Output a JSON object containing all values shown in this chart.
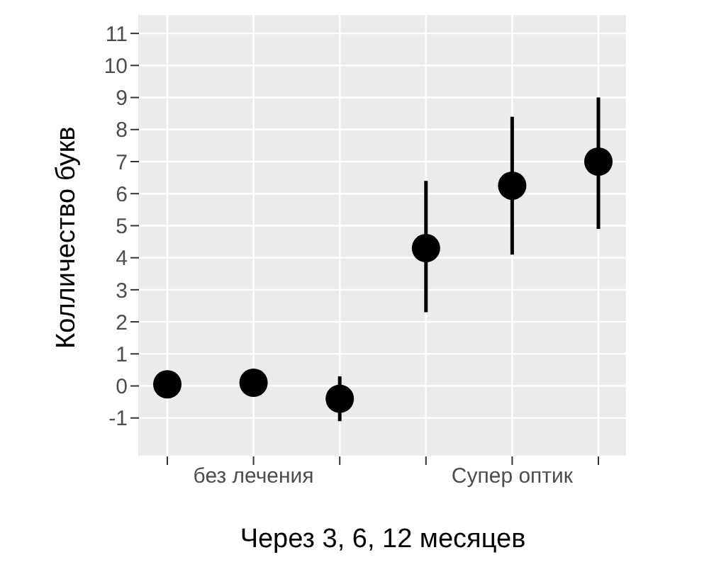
{
  "chart_data": {
    "type": "scatter",
    "xlabel": "Через 3, 6, 12 месяцев",
    "ylabel": "Колличество букв",
    "categories": [
      null,
      "без лечения",
      null,
      null,
      "Супер оптик",
      null
    ],
    "series": [
      {
        "color": "#000000",
        "values": [
          0.05,
          0.1,
          -0.4,
          4.3,
          6.25,
          7.0
        ],
        "errors": [
          null,
          null,
          [
            -1.1,
            0.3
          ],
          [
            2.3,
            6.4
          ],
          [
            4.1,
            8.4
          ],
          [
            4.9,
            9.0
          ]
        ]
      }
    ],
    "ylim": [
      -2.2,
      11.6
    ],
    "yticks": [
      -1,
      0,
      1,
      2,
      3,
      4,
      5,
      6,
      7,
      8,
      9,
      10,
      11
    ],
    "grid": true,
    "marker": "circle",
    "legend": false
  }
}
